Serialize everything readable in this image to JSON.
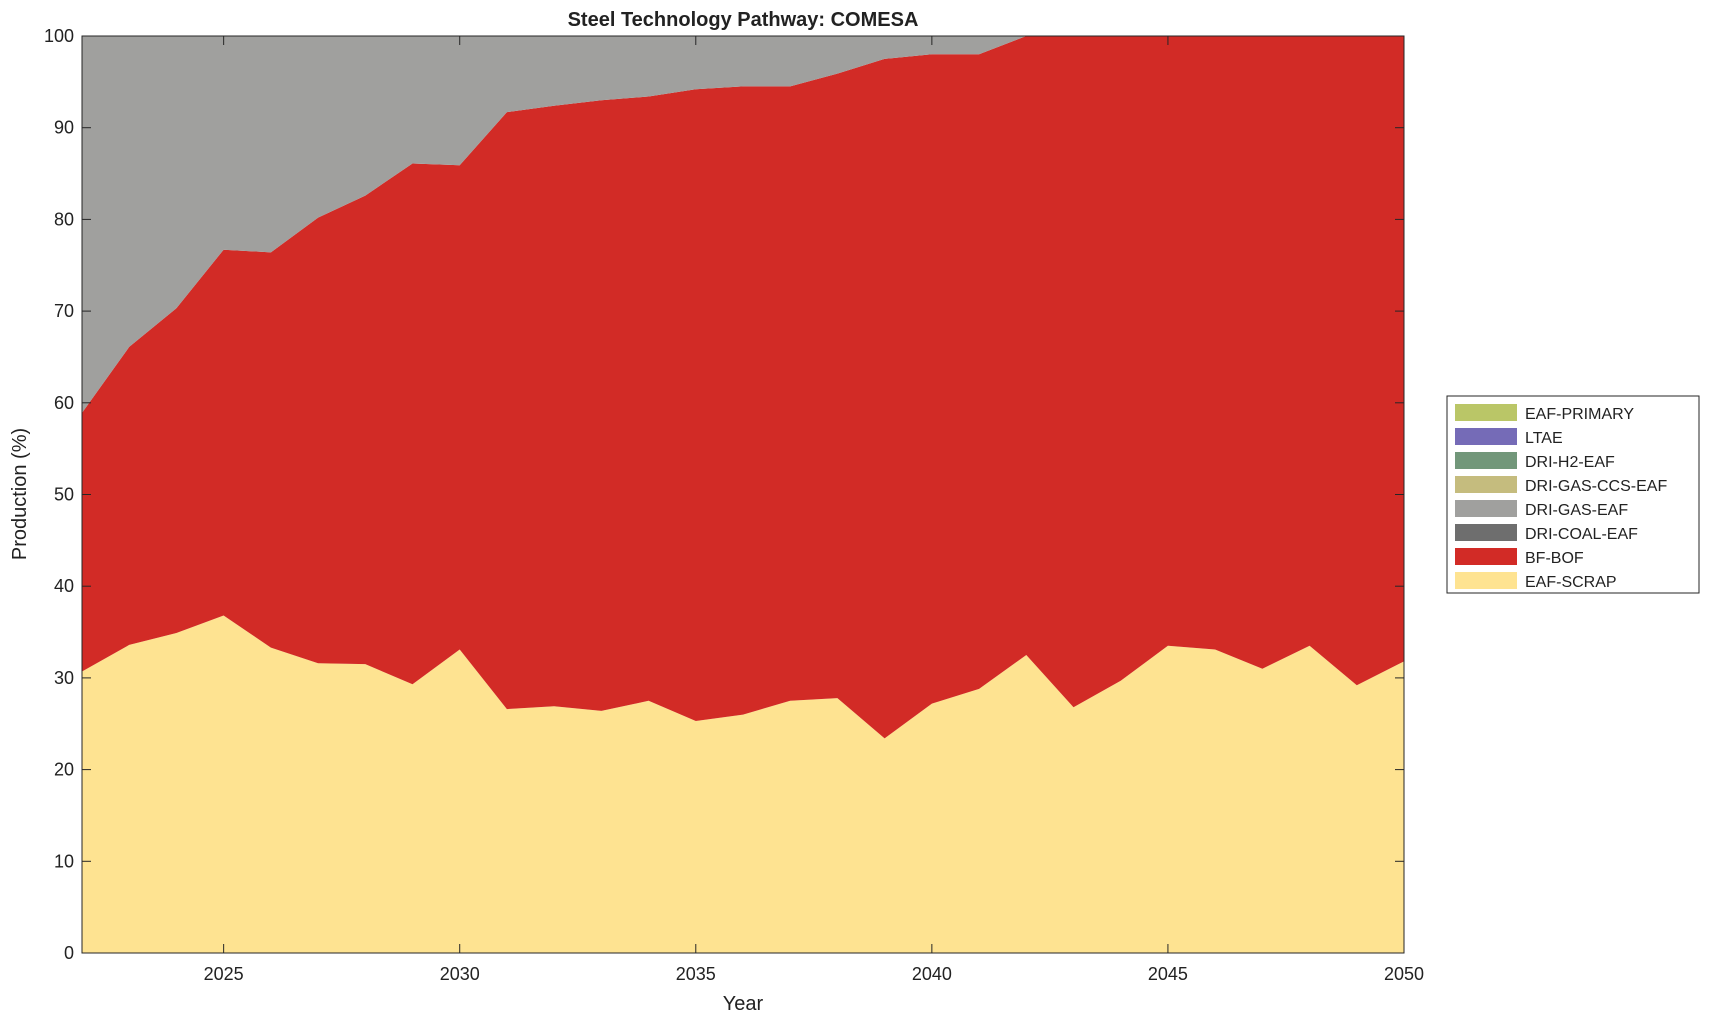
{
  "chart_data": {
    "type": "area",
    "stacked": true,
    "title": "Steel Technology Pathway: COMESA",
    "xlabel": "Year",
    "ylabel": "Production (%)",
    "xlim": [
      2022,
      2050
    ],
    "ylim": [
      0,
      100
    ],
    "xticks": [
      2025,
      2030,
      2035,
      2040,
      2045,
      2050
    ],
    "yticks": [
      0,
      10,
      20,
      30,
      40,
      50,
      60,
      70,
      80,
      90,
      100
    ],
    "grid": false,
    "legend_position": "right",
    "x": [
      2022,
      2023,
      2024,
      2025,
      2026,
      2027,
      2028,
      2029,
      2030,
      2031,
      2032,
      2033,
      2034,
      2035,
      2036,
      2037,
      2038,
      2039,
      2040,
      2041,
      2042,
      2043,
      2044,
      2045,
      2046,
      2047,
      2048,
      2049,
      2050
    ],
    "series": [
      {
        "name": "EAF-SCRAP",
        "color": "#FEE391",
        "values": [
          30.7,
          33.6,
          34.9,
          36.8,
          33.3,
          31.6,
          31.5,
          29.3,
          33.1,
          26.6,
          26.9,
          26.4,
          27.5,
          25.3,
          26.0,
          27.5,
          27.8,
          23.4,
          27.2,
          28.8,
          32.5,
          26.8,
          29.7,
          33.5,
          33.1,
          31.0,
          33.5,
          29.2,
          31.8
        ]
      },
      {
        "name": "BF-BOF",
        "color": "#D22B26",
        "values": [
          28.2,
          32.5,
          35.4,
          39.9,
          43.1,
          48.6,
          51.1,
          56.8,
          52.8,
          65.1,
          65.5,
          66.6,
          65.9,
          68.9,
          68.5,
          67.0,
          68.1,
          74.1,
          70.8,
          69.2,
          67.5,
          73.2,
          70.3,
          66.5,
          66.9,
          69.0,
          66.5,
          70.8,
          68.2
        ]
      },
      {
        "name": "DRI-COAL-EAF",
        "color": "#6E6E6E",
        "values": [
          0,
          0,
          0,
          0,
          0,
          0,
          0,
          0,
          0,
          0,
          0,
          0,
          0,
          0,
          0,
          0,
          0,
          0,
          0,
          0,
          0,
          0,
          0,
          0,
          0,
          0,
          0,
          0,
          0
        ]
      },
      {
        "name": "DRI-GAS-EAF",
        "color": "#A0A09E",
        "values": [
          41.1,
          33.9,
          29.7,
          23.3,
          23.6,
          19.8,
          17.4,
          13.9,
          14.1,
          8.3,
          7.6,
          7.0,
          6.6,
          5.8,
          5.5,
          5.5,
          4.1,
          2.5,
          2.0,
          2.0,
          0,
          0,
          0,
          0,
          0,
          0,
          0,
          0,
          0
        ]
      },
      {
        "name": "DRI-GAS-CCS-EAF",
        "color": "#C5BC7E",
        "values": [
          0,
          0,
          0,
          0,
          0,
          0,
          0,
          0,
          0,
          0,
          0,
          0,
          0,
          0,
          0,
          0,
          0,
          0,
          0,
          0,
          0,
          0,
          0,
          0,
          0,
          0,
          0,
          0,
          0
        ]
      },
      {
        "name": "DRI-H2-EAF",
        "color": "#72977A",
        "values": [
          0,
          0,
          0,
          0,
          0,
          0,
          0,
          0,
          0,
          0,
          0,
          0,
          0,
          0,
          0,
          0,
          0,
          0,
          0,
          0,
          0,
          0,
          0,
          0,
          0,
          0,
          0,
          0,
          0
        ]
      },
      {
        "name": "LTAE",
        "color": "#756BB7",
        "values": [
          0,
          0,
          0,
          0,
          0,
          0,
          0,
          0,
          0,
          0,
          0,
          0,
          0,
          0,
          0,
          0,
          0,
          0,
          0,
          0,
          0,
          0,
          0,
          0,
          0,
          0,
          0,
          0,
          0
        ]
      },
      {
        "name": "EAF-PRIMARY",
        "color": "#BAC667",
        "values": [
          0,
          0,
          0,
          0,
          0,
          0,
          0,
          0,
          0,
          0,
          0,
          0,
          0,
          0,
          0,
          0,
          0,
          0,
          0,
          0,
          0,
          0,
          0,
          0,
          0,
          0,
          0,
          0,
          0
        ]
      }
    ],
    "legend_order": [
      "EAF-PRIMARY",
      "LTAE",
      "DRI-H2-EAF",
      "DRI-GAS-CCS-EAF",
      "DRI-GAS-EAF",
      "DRI-COAL-EAF",
      "BF-BOF",
      "EAF-SCRAP"
    ]
  }
}
